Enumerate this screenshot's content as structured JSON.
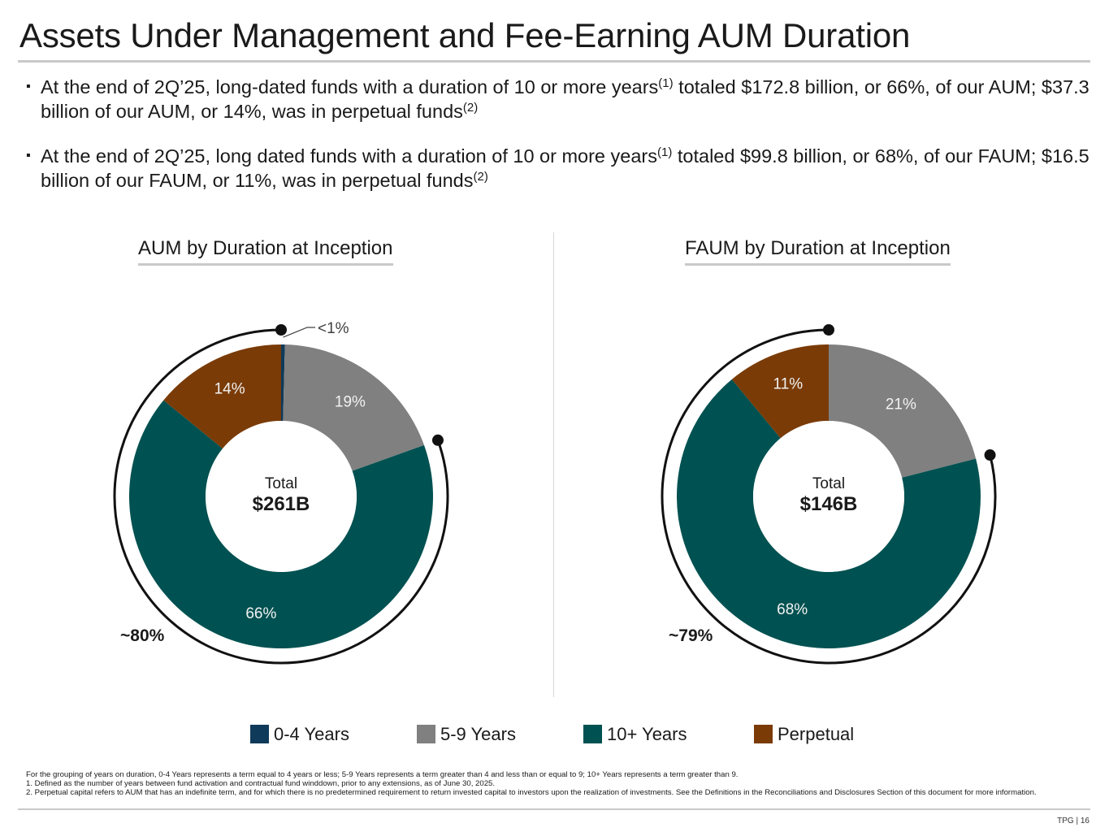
{
  "page": {
    "title": "Assets Under Management and Fee-Earning AUM Duration",
    "bullets": [
      {
        "text_a": "At the end of 2Q’25, long-dated funds with a duration of 10 or more years",
        "sup_a": "(1)",
        "text_b": " totaled $172.8 billion, or 66%, of our AUM; $37.3 billion of our AUM, or 14%, was in perpetual funds",
        "sup_b": "(2)"
      },
      {
        "text_a": "At the end of 2Q’25, long dated funds with a duration of 10 or more years",
        "sup_a": "(1)",
        "text_b": " totaled $99.8 billion, or 68%, of our FAUM; $16.5 billion of our FAUM, or 11%, was in perpetual funds",
        "sup_b": "(2)"
      }
    ],
    "footnotes": [
      "For the grouping of years on duration, 0-4 Years represents a term equal to 4 years or less; 5-9 Years represents a term greater than 4 and less than or equal to 9; 10+ Years represents a term greater than 9.",
      "1. Defined as the number of years between fund activation and contractual fund winddown, prior to any extensions, as of June 30, 2025.",
      "2. Perpetual capital refers to AUM that has an indefinite term, and for which there is no predetermined requirement to return invested capital to investors upon the realization of investments. See the Definitions in the Reconciliations and Disclosures Section of this document for more information."
    ],
    "page_number": "TPG | 16"
  },
  "chart_data": [
    {
      "type": "pie",
      "variant": "donut",
      "title": "AUM by Duration at Inception",
      "center_label": "Total",
      "center_value": "$261B",
      "categories": [
        "0-4 Years",
        "5-9 Years",
        "10+ Years",
        "Perpetual"
      ],
      "values": [
        0.4,
        19,
        66,
        14
      ],
      "data_labels": [
        "<1%",
        "19%",
        "66%",
        "14%"
      ],
      "bracket_label": "~80%",
      "bracket_covers": [
        "10+ Years",
        "Perpetual"
      ]
    },
    {
      "type": "pie",
      "variant": "donut",
      "title": "FAUM by Duration at Inception",
      "center_label": "Total",
      "center_value": "$146B",
      "categories": [
        "0-4 Years",
        "5-9 Years",
        "10+ Years",
        "Perpetual"
      ],
      "values": [
        0,
        21,
        68,
        11
      ],
      "data_labels": [
        "",
        "21%",
        "68%",
        "11%"
      ],
      "bracket_label": "~79%",
      "bracket_covers": [
        "10+ Years",
        "Perpetual"
      ]
    }
  ],
  "legend": [
    {
      "label": "0-4 Years",
      "color": "#0f3a5a"
    },
    {
      "label": "5-9 Years",
      "color": "#808080"
    },
    {
      "label": "10+ Years",
      "color": "#005151"
    },
    {
      "label": "Perpetual",
      "color": "#7a3b07"
    }
  ],
  "colors": {
    "label_light": "#f2f2f2",
    "label_dark": "#404040",
    "bracket": "#111111"
  }
}
